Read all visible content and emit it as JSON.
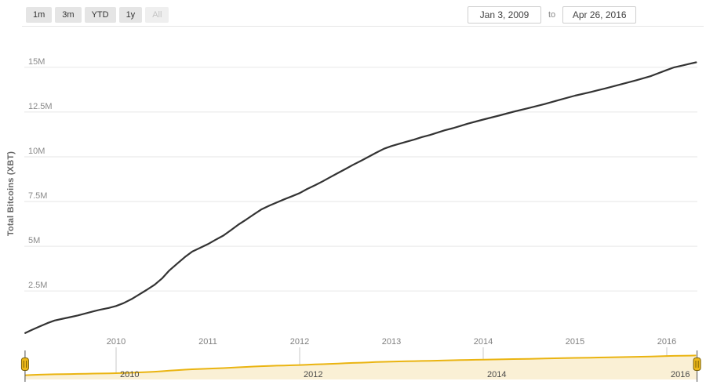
{
  "range_selector": {
    "buttons": [
      {
        "label": "1m",
        "enabled": true
      },
      {
        "label": "3m",
        "enabled": true
      },
      {
        "label": "YTD",
        "enabled": true
      },
      {
        "label": "1y",
        "enabled": true
      },
      {
        "label": "All",
        "enabled": false
      }
    ]
  },
  "date_range": {
    "from": "Jan 3, 2009",
    "separator": "to",
    "to": "Apr 26, 2016"
  },
  "chart_data": {
    "type": "line",
    "title": "",
    "ylabel": "Total Bitcoins (XBT)",
    "xlim": [
      2009.008,
      2016.33
    ],
    "ylim": [
      0,
      17.3
    ],
    "grid": "horizontal",
    "colors": {
      "series": "#333333",
      "gridline": "#e6e6e6",
      "y_label": "#8a8a8a",
      "x_label": "#808080",
      "nav_line": "#eab411",
      "nav_fill": "#faf0d5",
      "nav_gridline": "#c9c9c9",
      "nav_label": "#4a4a4a",
      "handle_fill": "#edb818",
      "handle_stroke": "#7a6004",
      "handle_stem": "#4d4d4d",
      "separator": "#e7e7e7"
    },
    "yticks": [
      {
        "value": 2.5,
        "label": "2.5M"
      },
      {
        "value": 5,
        "label": "5M"
      },
      {
        "value": 7.5,
        "label": "7.5M"
      },
      {
        "value": 10,
        "label": "10M"
      },
      {
        "value": 12.5,
        "label": "12.5M"
      },
      {
        "value": 15,
        "label": "15M"
      }
    ],
    "xticks": [
      {
        "value": 2010,
        "label": "2010"
      },
      {
        "value": 2011,
        "label": "2011"
      },
      {
        "value": 2012,
        "label": "2012"
      },
      {
        "value": 2013,
        "label": "2013"
      },
      {
        "value": 2014,
        "label": "2014"
      },
      {
        "value": 2015,
        "label": "2015"
      },
      {
        "value": 2016,
        "label": "2016"
      }
    ],
    "series": [
      {
        "name": "Total Bitcoins (XBT)",
        "units": "millions",
        "points": [
          [
            2009.01,
            0.15
          ],
          [
            2009.08,
            0.32
          ],
          [
            2009.17,
            0.52
          ],
          [
            2009.25,
            0.7
          ],
          [
            2009.33,
            0.85
          ],
          [
            2009.42,
            0.95
          ],
          [
            2009.5,
            1.04
          ],
          [
            2009.58,
            1.13
          ],
          [
            2009.67,
            1.25
          ],
          [
            2009.75,
            1.36
          ],
          [
            2009.83,
            1.46
          ],
          [
            2009.92,
            1.55
          ],
          [
            2010.0,
            1.66
          ],
          [
            2010.08,
            1.82
          ],
          [
            2010.17,
            2.05
          ],
          [
            2010.25,
            2.3
          ],
          [
            2010.33,
            2.55
          ],
          [
            2010.42,
            2.85
          ],
          [
            2010.5,
            3.2
          ],
          [
            2010.58,
            3.65
          ],
          [
            2010.67,
            4.05
          ],
          [
            2010.75,
            4.4
          ],
          [
            2010.83,
            4.7
          ],
          [
            2010.92,
            4.92
          ],
          [
            2011.0,
            5.12
          ],
          [
            2011.08,
            5.35
          ],
          [
            2011.17,
            5.6
          ],
          [
            2011.25,
            5.9
          ],
          [
            2011.33,
            6.2
          ],
          [
            2011.42,
            6.5
          ],
          [
            2011.5,
            6.78
          ],
          [
            2011.58,
            7.05
          ],
          [
            2011.67,
            7.27
          ],
          [
            2011.75,
            7.45
          ],
          [
            2011.83,
            7.62
          ],
          [
            2011.92,
            7.8
          ],
          [
            2012.0,
            7.97
          ],
          [
            2012.08,
            8.2
          ],
          [
            2012.17,
            8.42
          ],
          [
            2012.25,
            8.63
          ],
          [
            2012.33,
            8.85
          ],
          [
            2012.42,
            9.1
          ],
          [
            2012.5,
            9.32
          ],
          [
            2012.58,
            9.55
          ],
          [
            2012.67,
            9.78
          ],
          [
            2012.75,
            10.0
          ],
          [
            2012.83,
            10.22
          ],
          [
            2012.92,
            10.45
          ],
          [
            2013.0,
            10.6
          ],
          [
            2013.08,
            10.72
          ],
          [
            2013.17,
            10.85
          ],
          [
            2013.25,
            10.97
          ],
          [
            2013.33,
            11.1
          ],
          [
            2013.42,
            11.22
          ],
          [
            2013.5,
            11.35
          ],
          [
            2013.58,
            11.48
          ],
          [
            2013.67,
            11.6
          ],
          [
            2013.75,
            11.72
          ],
          [
            2013.83,
            11.85
          ],
          [
            2013.92,
            11.97
          ],
          [
            2014.0,
            12.08
          ],
          [
            2014.17,
            12.3
          ],
          [
            2014.33,
            12.52
          ],
          [
            2014.5,
            12.73
          ],
          [
            2014.67,
            12.95
          ],
          [
            2014.83,
            13.18
          ],
          [
            2015.0,
            13.42
          ],
          [
            2015.17,
            13.62
          ],
          [
            2015.33,
            13.82
          ],
          [
            2015.5,
            14.05
          ],
          [
            2015.67,
            14.28
          ],
          [
            2015.83,
            14.52
          ],
          [
            2016.0,
            14.85
          ],
          [
            2016.08,
            15.0
          ],
          [
            2016.17,
            15.1
          ],
          [
            2016.25,
            15.2
          ],
          [
            2016.32,
            15.28
          ]
        ]
      }
    ],
    "navigator": {
      "xticks": [
        2010,
        2012,
        2014,
        2016
      ],
      "range_start": 2009.008,
      "range_end": 2016.33
    }
  }
}
